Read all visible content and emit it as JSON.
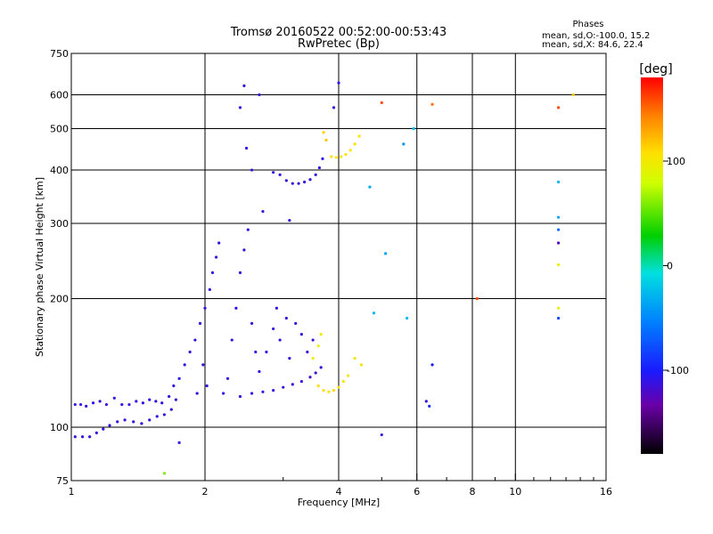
{
  "chart_data": {
    "type": "scatter",
    "title": "Tromsø 20160522 00:52:00-00:53:43",
    "subtitle": "RwPretec (Bp)",
    "xlabel": "Frequency [MHz]",
    "ylabel": "Stationary phase Virtual Height [km]",
    "x_scale": "log",
    "y_scale": "log",
    "xlim": [
      1,
      16
    ],
    "ylim": [
      75,
      750
    ],
    "xticks": [
      1,
      2,
      4,
      6,
      8,
      10,
      16
    ],
    "xtick_labels": [
      "1",
      "2",
      "4",
      "6",
      "8",
      "10",
      "16"
    ],
    "yticks": [
      75,
      100,
      200,
      300,
      400,
      500,
      600,
      750
    ],
    "ytick_labels": [
      "75",
      "100",
      "200",
      "300",
      "400",
      "500",
      "600",
      "750"
    ],
    "x_gridlines": [
      2,
      4,
      6,
      8,
      10
    ],
    "y_gridlines": [
      100,
      200,
      300,
      400,
      500,
      600
    ],
    "grid": true,
    "legend": {
      "title": "Phases",
      "line1": "mean, sd,O:-100.0, 15.2",
      "line2": "mean, sd,X:  84.6, 22.4",
      "placement": "top-right"
    },
    "colorbar": {
      "label": "[deg]",
      "range": [
        -180,
        180
      ],
      "ticks": [
        100,
        0,
        -100
      ],
      "tick_labels": [
        "100",
        "0",
        "-100"
      ]
    },
    "series": [
      {
        "note_color": "phase",
        "points": [
          [
            1.02,
            113,
            -110
          ],
          [
            1.05,
            113,
            -110
          ],
          [
            1.08,
            112,
            -110
          ],
          [
            1.12,
            114,
            -108
          ],
          [
            1.16,
            115,
            -112
          ],
          [
            1.2,
            113,
            -110
          ],
          [
            1.25,
            117,
            -110
          ],
          [
            1.3,
            113,
            -105
          ],
          [
            1.35,
            113,
            -112
          ],
          [
            1.4,
            115,
            -110
          ],
          [
            1.45,
            114,
            -110
          ],
          [
            1.5,
            116,
            -108
          ],
          [
            1.55,
            115,
            -110
          ],
          [
            1.6,
            114,
            -110
          ],
          [
            1.66,
            118,
            -112
          ],
          [
            1.72,
            116,
            -110
          ],
          [
            1.02,
            95,
            -110
          ],
          [
            1.06,
            95,
            -110
          ],
          [
            1.1,
            95,
            -112
          ],
          [
            1.14,
            97,
            -110
          ],
          [
            1.18,
            99,
            -108
          ],
          [
            1.22,
            101,
            -110
          ],
          [
            1.27,
            103,
            -110
          ],
          [
            1.32,
            104,
            -112
          ],
          [
            1.38,
            103,
            -110
          ],
          [
            1.44,
            102,
            -110
          ],
          [
            1.5,
            104,
            -110
          ],
          [
            1.56,
            106,
            -108
          ],
          [
            1.62,
            107,
            -110
          ],
          [
            1.68,
            110,
            -110
          ],
          [
            1.7,
            125,
            -110
          ],
          [
            1.75,
            130,
            -105
          ],
          [
            1.8,
            140,
            -110
          ],
          [
            1.85,
            150,
            -110
          ],
          [
            1.9,
            160,
            -112
          ],
          [
            1.95,
            175,
            -110
          ],
          [
            2.0,
            190,
            -110
          ],
          [
            2.05,
            210,
            -110
          ],
          [
            2.08,
            230,
            -105
          ],
          [
            2.12,
            250,
            -110
          ],
          [
            2.15,
            270,
            -110
          ],
          [
            1.98,
            140,
            -110
          ],
          [
            1.92,
            120,
            -110
          ],
          [
            2.02,
            125,
            -112
          ],
          [
            2.2,
            120,
            -110
          ],
          [
            2.25,
            130,
            -110
          ],
          [
            2.3,
            160,
            -110
          ],
          [
            2.35,
            190,
            -105
          ],
          [
            2.4,
            230,
            -110
          ],
          [
            2.45,
            260,
            -110
          ],
          [
            2.5,
            290,
            -110
          ],
          [
            2.55,
            175,
            -110
          ],
          [
            2.6,
            150,
            -112
          ],
          [
            2.65,
            135,
            -110
          ],
          [
            2.4,
            118,
            -110
          ],
          [
            2.55,
            120,
            -110
          ],
          [
            2.7,
            121,
            -110
          ],
          [
            2.85,
            122,
            -112
          ],
          [
            3.0,
            124,
            -110
          ],
          [
            3.15,
            126,
            -115
          ],
          [
            3.3,
            128,
            -115
          ],
          [
            3.45,
            131,
            -118
          ],
          [
            3.55,
            134,
            -115
          ],
          [
            3.65,
            138,
            -112
          ],
          [
            2.75,
            150,
            -110
          ],
          [
            2.85,
            170,
            -110
          ],
          [
            2.9,
            190,
            -108
          ],
          [
            2.95,
            160,
            -110
          ],
          [
            3.05,
            180,
            -110
          ],
          [
            3.1,
            145,
            -112
          ],
          [
            3.2,
            175,
            -110
          ],
          [
            3.3,
            165,
            -112
          ],
          [
            3.4,
            150,
            -115
          ],
          [
            3.5,
            160,
            -112
          ],
          [
            2.85,
            395,
            -110
          ],
          [
            2.95,
            390,
            -110
          ],
          [
            3.05,
            378,
            -112
          ],
          [
            3.15,
            372,
            -110
          ],
          [
            3.25,
            372,
            -110
          ],
          [
            3.35,
            375,
            -112
          ],
          [
            3.45,
            380,
            -110
          ],
          [
            3.55,
            390,
            -112
          ],
          [
            3.62,
            405,
            -108
          ],
          [
            3.68,
            425,
            -110
          ],
          [
            2.4,
            560,
            -110
          ],
          [
            2.45,
            630,
            -110
          ],
          [
            2.48,
            450,
            -110
          ],
          [
            2.55,
            400,
            -110
          ],
          [
            2.7,
            320,
            -110
          ],
          [
            3.1,
            305,
            -110
          ],
          [
            2.65,
            600,
            -110
          ],
          [
            3.85,
            430,
            110
          ],
          [
            3.95,
            428,
            110
          ],
          [
            4.05,
            430,
            108
          ],
          [
            4.15,
            435,
            110
          ],
          [
            4.25,
            445,
            110
          ],
          [
            4.35,
            460,
            112
          ],
          [
            4.45,
            480,
            110
          ],
          [
            3.75,
            470,
            120
          ],
          [
            3.7,
            490,
            115
          ],
          [
            3.6,
            125,
            110
          ],
          [
            3.7,
            122,
            108
          ],
          [
            3.8,
            121,
            110
          ],
          [
            3.9,
            122,
            112
          ],
          [
            4.0,
            124,
            110
          ],
          [
            4.1,
            128,
            105
          ],
          [
            4.2,
            132,
            110
          ],
          [
            3.5,
            145,
            100
          ],
          [
            3.6,
            155,
            95
          ],
          [
            3.65,
            165,
            100
          ],
          [
            4.35,
            145,
            105
          ],
          [
            4.5,
            140,
            110
          ],
          [
            5.0,
            575,
            160
          ],
          [
            6.5,
            570,
            150
          ],
          [
            12.5,
            560,
            160
          ],
          [
            13.5,
            600,
            120
          ],
          [
            12.5,
            240,
            95
          ],
          [
            12.5,
            190,
            90
          ],
          [
            12.5,
            375,
            -20
          ],
          [
            12.5,
            310,
            -30
          ],
          [
            12.5,
            290,
            -60
          ],
          [
            12.5,
            270,
            -120
          ],
          [
            12.5,
            180,
            -80
          ],
          [
            5.1,
            255,
            -30
          ],
          [
            5.6,
            460,
            -40
          ],
          [
            5.7,
            180,
            -20
          ],
          [
            4.8,
            185,
            -20
          ],
          [
            4.7,
            365,
            -30
          ],
          [
            6.3,
            115,
            -110
          ],
          [
            6.5,
            140,
            -100
          ],
          [
            6.4,
            112,
            -90
          ],
          [
            5.0,
            96,
            -110
          ],
          [
            1.62,
            78,
            60
          ],
          [
            1.75,
            92,
            -110
          ],
          [
            8.2,
            200,
            160
          ],
          [
            5.9,
            500,
            -20
          ],
          [
            3.9,
            560,
            -110
          ],
          [
            4.0,
            640,
            -110
          ]
        ]
      }
    ]
  }
}
